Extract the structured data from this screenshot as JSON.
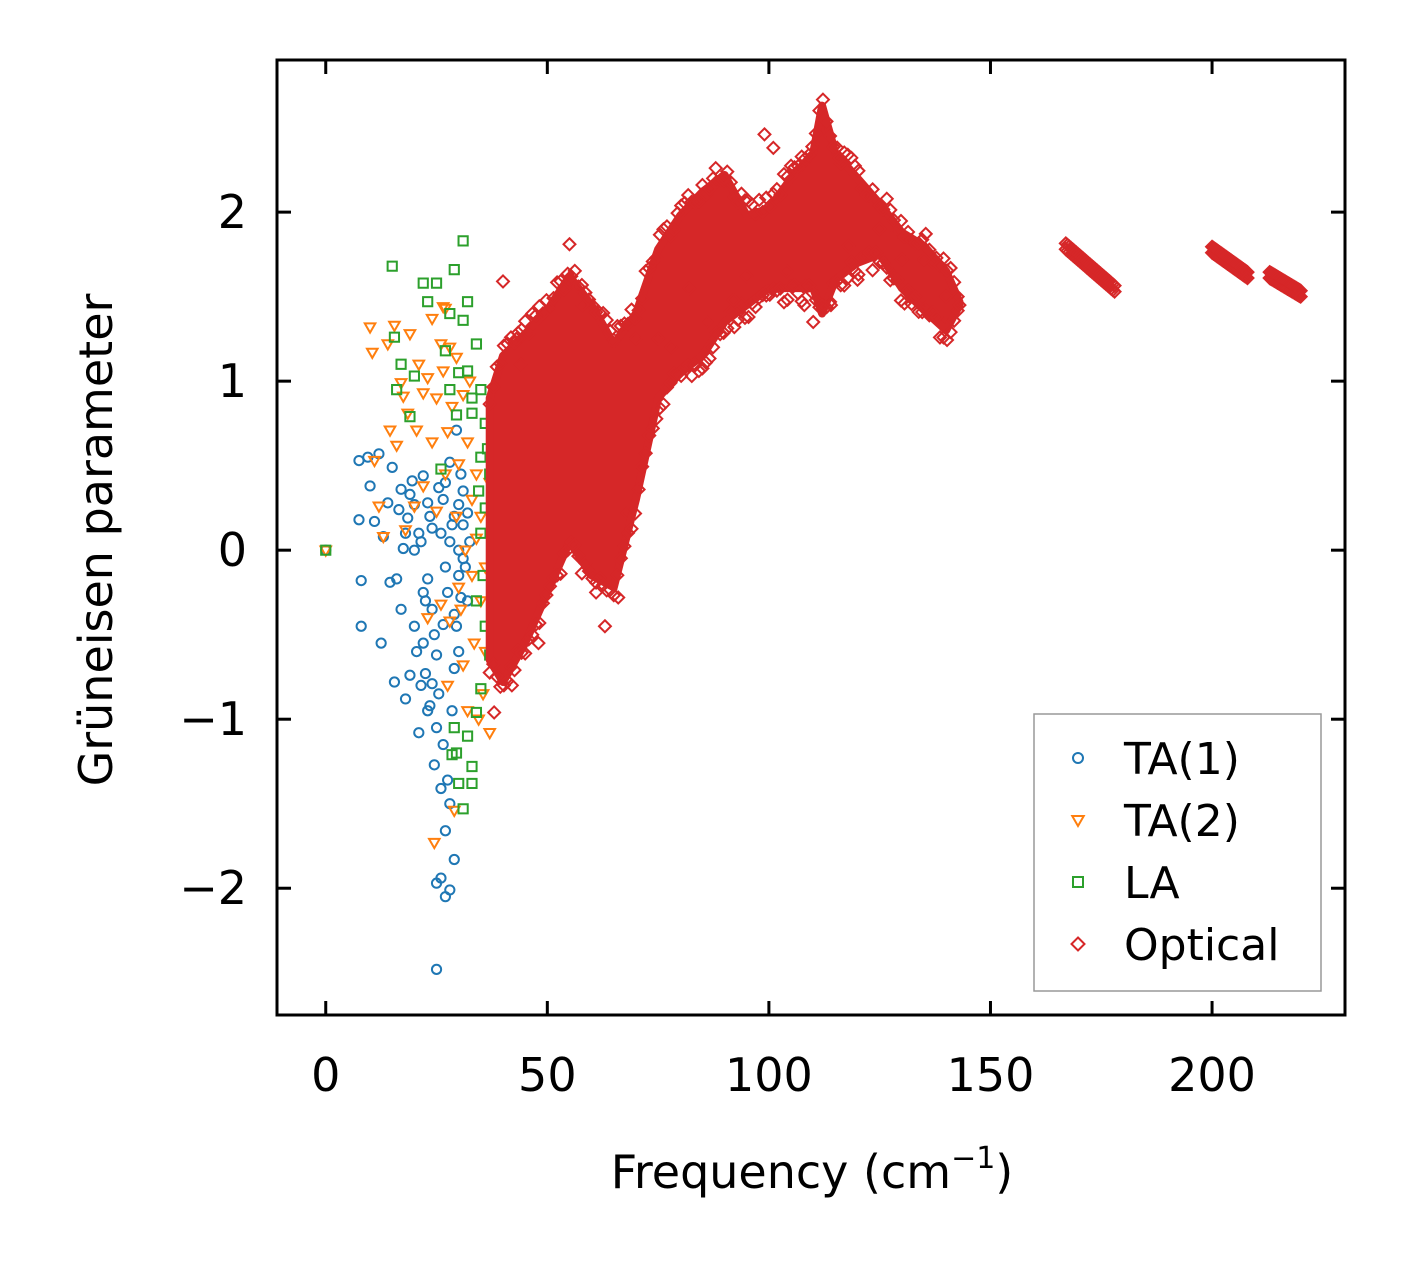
{
  "chart_data": {
    "type": "scatter",
    "xlabel": "Frequency (cm",
    "xlabel_sup": "−1",
    "xlabel_close": ")",
    "ylabel": "Grüneisen parameter",
    "xlim": [
      -11,
      230
    ],
    "ylim": [
      -2.75,
      2.9
    ],
    "xticks": [
      0,
      50,
      100,
      150,
      200
    ],
    "xtick_labels": [
      "0",
      "50",
      "100",
      "150",
      "200"
    ],
    "yticks": [
      -2,
      -1,
      0,
      1,
      2
    ],
    "ytick_labels": [
      "−2",
      "−1",
      "0",
      "1",
      "2"
    ],
    "grid": false,
    "legend_position": "bottom-right",
    "series": [
      {
        "name": "TA(1)",
        "marker": "circle",
        "color": "#1f77b4",
        "points": [
          [
            0,
            0
          ],
          [
            7.5,
            0.53
          ],
          [
            7.5,
            0.18
          ],
          [
            8,
            -0.18
          ],
          [
            8,
            -0.45
          ],
          [
            9.5,
            0.55
          ],
          [
            10,
            0.38
          ],
          [
            11,
            0.17
          ],
          [
            12,
            0.57
          ],
          [
            12.5,
            -0.55
          ],
          [
            13,
            0.08
          ],
          [
            14,
            0.28
          ],
          [
            14.5,
            -0.19
          ],
          [
            15,
            0.49
          ],
          [
            15.5,
            -0.78
          ],
          [
            16,
            -0.17
          ],
          [
            16.5,
            0.24
          ],
          [
            17,
            -0.35
          ],
          [
            17,
            0.36
          ],
          [
            17.5,
            0.01
          ],
          [
            18,
            -0.88
          ],
          [
            18.5,
            0.19
          ],
          [
            19,
            -0.74
          ],
          [
            19.5,
            0.41
          ],
          [
            20,
            -0.45
          ],
          [
            20,
            0.27
          ],
          [
            20.5,
            -0.6
          ],
          [
            21,
            -1.08
          ],
          [
            21.5,
            0.05
          ],
          [
            22,
            -0.25
          ],
          [
            22,
            0.44
          ],
          [
            22.5,
            -0.73
          ],
          [
            23,
            -0.17
          ],
          [
            23,
            0.28
          ],
          [
            23.5,
            -0.92
          ],
          [
            24,
            -0.79
          ],
          [
            24,
            0.13
          ],
          [
            24.5,
            -1.27
          ],
          [
            25,
            -0.62
          ],
          [
            25,
            -1.97
          ],
          [
            25,
            -2.48
          ],
          [
            25.5,
            0.37
          ],
          [
            26,
            -1.94
          ],
          [
            26,
            -1.41
          ],
          [
            26.5,
            -0.44
          ],
          [
            27,
            -2.05
          ],
          [
            27,
            -1.66
          ],
          [
            27.5,
            -1.36
          ],
          [
            28,
            -2.01
          ],
          [
            28,
            0.52
          ],
          [
            28.5,
            -0.95
          ],
          [
            29,
            -1.83
          ],
          [
            29,
            -0.38
          ],
          [
            29.5,
            0.71
          ],
          [
            30,
            -0.6
          ],
          [
            30,
            0.27
          ],
          [
            30.5,
            -0.28
          ],
          [
            31,
            0.15
          ],
          [
            31,
            -0.05
          ],
          [
            32,
            -0.3
          ],
          [
            32,
            0.22
          ],
          [
            26,
            0.1
          ],
          [
            27,
            -0.1
          ],
          [
            28,
            0.05
          ],
          [
            29,
            0.2
          ],
          [
            30,
            -0.15
          ],
          [
            24,
            -0.35
          ],
          [
            25,
            -1.05
          ],
          [
            26.5,
            -1.15
          ],
          [
            28,
            -1.5
          ],
          [
            23,
            -0.95
          ],
          [
            22,
            -0.55
          ],
          [
            21,
            0.1
          ],
          [
            20,
            0.0
          ],
          [
            19,
            0.33
          ],
          [
            18,
            0.1
          ],
          [
            27,
            0.4
          ],
          [
            29,
            -0.7
          ],
          [
            31,
            0.35
          ],
          [
            30,
            0.0
          ],
          [
            28.5,
            0.15
          ],
          [
            27.5,
            -0.25
          ],
          [
            26.5,
            0.3
          ],
          [
            25.5,
            -0.85
          ],
          [
            24.5,
            -0.5
          ],
          [
            23.5,
            0.2
          ],
          [
            22.5,
            -0.3
          ],
          [
            21.5,
            -0.8
          ],
          [
            29.5,
            -0.45
          ],
          [
            31.5,
            -0.1
          ],
          [
            32.5,
            0.05
          ],
          [
            30.5,
            0.45
          ]
        ]
      },
      {
        "name": "TA(2)",
        "marker": "triangle-down",
        "color": "#ff7f0e",
        "points": [
          [
            0,
            0
          ],
          [
            10,
            1.32
          ],
          [
            10.5,
            1.17
          ],
          [
            11,
            0.53
          ],
          [
            12,
            0.26
          ],
          [
            13,
            0.08
          ],
          [
            14,
            1.22
          ],
          [
            14.5,
            0.71
          ],
          [
            15.5,
            1.33
          ],
          [
            16,
            0.62
          ],
          [
            17,
            0.99
          ],
          [
            17.5,
            0.91
          ],
          [
            18,
            0.12
          ],
          [
            18.5,
            0.81
          ],
          [
            19,
            1.28
          ],
          [
            20,
            0.26
          ],
          [
            20.5,
            0.71
          ],
          [
            21,
            1.1
          ],
          [
            22,
            0.38
          ],
          [
            22,
            0.93
          ],
          [
            23,
            1.02
          ],
          [
            23,
            -0.4
          ],
          [
            24,
            1.37
          ],
          [
            24,
            0.64
          ],
          [
            24.5,
            -1.73
          ],
          [
            25,
            0.23
          ],
          [
            26,
            1.22
          ],
          [
            26,
            -0.32
          ],
          [
            26.5,
            1.06
          ],
          [
            27,
            0.45
          ],
          [
            27.5,
            -0.8
          ],
          [
            28,
            1.2
          ],
          [
            28,
            -0.42
          ],
          [
            28.5,
            0.85
          ],
          [
            29,
            -1.54
          ],
          [
            29.5,
            1.14
          ],
          [
            30,
            -0.22
          ],
          [
            30,
            0.51
          ],
          [
            31,
            0.92
          ],
          [
            31,
            -0.68
          ],
          [
            32,
            0.64
          ],
          [
            32,
            -0.95
          ],
          [
            33,
            0.3
          ],
          [
            33.5,
            -0.55
          ],
          [
            34,
            0.07
          ],
          [
            34.5,
            -1.0
          ],
          [
            35,
            -0.3
          ],
          [
            35,
            0.2
          ],
          [
            36,
            -0.1
          ],
          [
            36,
            -0.6
          ],
          [
            37,
            0.4
          ],
          [
            37,
            -1.08
          ],
          [
            26.5,
            1.44
          ],
          [
            27,
            1.43
          ],
          [
            25,
            0.9
          ],
          [
            27.5,
            0.7
          ],
          [
            29.5,
            0.2
          ],
          [
            31.5,
            0.0
          ],
          [
            30.5,
            -0.35
          ],
          [
            33,
            -0.15
          ],
          [
            34,
            0.45
          ],
          [
            35.5,
            -0.85
          ],
          [
            32.5,
            1.0
          ]
        ]
      },
      {
        "name": "LA",
        "marker": "square",
        "color": "#2ca02c",
        "points": [
          [
            0,
            0
          ],
          [
            15,
            1.68
          ],
          [
            15.5,
            1.26
          ],
          [
            16,
            0.95
          ],
          [
            17,
            1.1
          ],
          [
            19,
            0.79
          ],
          [
            20,
            1.03
          ],
          [
            22,
            1.58
          ],
          [
            23,
            1.47
          ],
          [
            25,
            1.58
          ],
          [
            26,
            0.48
          ],
          [
            27,
            1.18
          ],
          [
            28,
            0.95
          ],
          [
            28,
            1.4
          ],
          [
            29,
            1.66
          ],
          [
            29.5,
            0.8
          ],
          [
            30,
            1.05
          ],
          [
            31,
            1.36
          ],
          [
            31,
            1.83
          ],
          [
            32,
            1.47
          ],
          [
            32,
            1.06
          ],
          [
            33,
            0.81
          ],
          [
            33,
            -1.28
          ],
          [
            34,
            1.22
          ],
          [
            35,
            0.55
          ],
          [
            36,
            0.25
          ],
          [
            36,
            -0.45
          ],
          [
            37,
            -0.62
          ],
          [
            35,
            -0.82
          ],
          [
            34,
            -0.96
          ],
          [
            33,
            -1.38
          ],
          [
            32,
            -1.1
          ],
          [
            31,
            -1.53
          ],
          [
            30,
            -1.38
          ],
          [
            29.5,
            -1.2
          ],
          [
            28.5,
            -1.21
          ],
          [
            29,
            -1.05
          ],
          [
            34.5,
            0.35
          ],
          [
            35,
            0.1
          ],
          [
            35.5,
            -0.15
          ],
          [
            36,
            0.75
          ],
          [
            36.5,
            0.6
          ],
          [
            37,
            0.45
          ],
          [
            37.5,
            0.2
          ],
          [
            38,
            0.3
          ],
          [
            38.5,
            0.1
          ],
          [
            34,
            -0.3
          ],
          [
            33,
            0.9
          ],
          [
            35,
            0.95
          ]
        ]
      },
      {
        "name": "Optical",
        "marker": "diamond",
        "color": "#d62728",
        "band": {
          "x": [
            37,
            40,
            45,
            50,
            55,
            60,
            65,
            70,
            75,
            80,
            85,
            90,
            95,
            100,
            105,
            110,
            112,
            115,
            120,
            125,
            130,
            135,
            140,
            143
          ],
          "upper": [
            0.9,
            1.15,
            1.28,
            1.42,
            1.62,
            1.45,
            1.22,
            1.4,
            1.78,
            1.98,
            2.12,
            2.22,
            1.98,
            2.02,
            2.2,
            2.35,
            2.63,
            2.35,
            2.2,
            2.05,
            1.88,
            1.8,
            1.65,
            1.47
          ],
          "lower": [
            -0.65,
            -0.78,
            -0.55,
            -0.25,
            0.05,
            -0.15,
            -0.22,
            0.3,
            0.9,
            1.05,
            1.15,
            1.35,
            1.45,
            1.55,
            1.55,
            1.55,
            1.4,
            1.6,
            1.7,
            1.75,
            1.55,
            1.42,
            1.3,
            1.45
          ]
        },
        "segments": [
          {
            "x": [
              167,
              178
            ],
            "y": [
              1.8,
              1.55
            ]
          },
          {
            "x": [
              200,
              208
            ],
            "y": [
              1.78,
              1.63
            ]
          },
          {
            "x": [
              213,
              220
            ],
            "y": [
              1.63,
              1.52
            ]
          }
        ],
        "outliers": [
          [
            38,
            -0.96
          ],
          [
            40,
            1.59
          ],
          [
            42,
            -0.8
          ],
          [
            43,
            1.25
          ],
          [
            44,
            1.1
          ],
          [
            48,
            -0.55
          ],
          [
            55,
            1.81
          ],
          [
            58,
            1.45
          ],
          [
            61,
            -0.25
          ],
          [
            63,
            -0.45
          ],
          [
            66,
            -0.28
          ],
          [
            68,
            0.22
          ],
          [
            70,
            1.25
          ],
          [
            75,
            1.25
          ],
          [
            78,
            1.2
          ],
          [
            82,
            1.55
          ],
          [
            88,
            2.26
          ],
          [
            90,
            2.2
          ],
          [
            95,
            1.62
          ],
          [
            99,
            2.46
          ],
          [
            101,
            2.38
          ],
          [
            108,
            1.45
          ],
          [
            112,
            1.45
          ],
          [
            114,
            1.45
          ],
          [
            116,
            2.32
          ],
          [
            118,
            1.8
          ],
          [
            122,
            2.1
          ],
          [
            125,
            1.9
          ],
          [
            130,
            1.72
          ],
          [
            135,
            1.72
          ],
          [
            140,
            1.5
          ],
          [
            143,
            1.45
          ],
          [
            92,
            1.48
          ],
          [
            86,
            1.35
          ],
          [
            104,
            1.65
          ],
          [
            110,
            1.35
          ],
          [
            120,
            1.6
          ]
        ]
      }
    ]
  }
}
